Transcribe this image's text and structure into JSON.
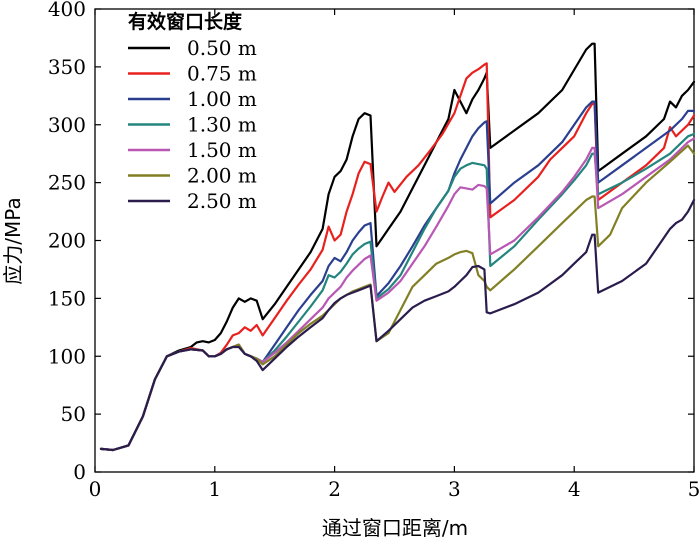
{
  "chart_data": {
    "type": "line",
    "xlabel": "通过窗口距离/m",
    "ylabel": "应力/MPa",
    "xlim": [
      0,
      5
    ],
    "ylim": [
      0,
      400
    ],
    "xticks": [
      0,
      1,
      2,
      3,
      4,
      5
    ],
    "yticks": [
      0,
      50,
      100,
      150,
      200,
      250,
      300,
      350,
      400
    ],
    "legend_title": "有效窗口长度",
    "legend_position": "top-left",
    "series": [
      {
        "name": "0.50 m",
        "color": "#000000",
        "x": [
          0.05,
          0.15,
          0.28,
          0.4,
          0.5,
          0.6,
          0.7,
          0.8,
          0.85,
          0.9,
          0.95,
          1.0,
          1.05,
          1.1,
          1.15,
          1.2,
          1.25,
          1.3,
          1.35,
          1.4,
          1.5,
          1.6,
          1.7,
          1.8,
          1.9,
          1.95,
          2.0,
          2.05,
          2.1,
          2.15,
          2.2,
          2.25,
          2.3,
          2.35,
          2.45,
          2.55,
          2.65,
          2.75,
          2.85,
          2.95,
          3.0,
          3.05,
          3.1,
          3.15,
          3.2,
          3.25,
          3.27,
          3.3,
          3.5,
          3.7,
          3.9,
          4.1,
          4.15,
          4.17,
          4.2,
          4.4,
          4.6,
          4.75,
          4.8,
          4.85,
          4.9,
          4.95,
          5.0
        ],
        "y": [
          20,
          19,
          23,
          48,
          80,
          100,
          105,
          108,
          112,
          113,
          112,
          114,
          120,
          130,
          142,
          150,
          147,
          150,
          148,
          132,
          145,
          160,
          175,
          190,
          210,
          240,
          255,
          260,
          270,
          290,
          305,
          310,
          308,
          195,
          210,
          225,
          245,
          265,
          285,
          305,
          330,
          320,
          310,
          322,
          330,
          340,
          345,
          280,
          295,
          310,
          330,
          365,
          370,
          370,
          260,
          275,
          290,
          305,
          320,
          315,
          325,
          330,
          337
        ]
      },
      {
        "name": "0.75 m",
        "color": "#e8201e",
        "x": [
          0.05,
          0.15,
          0.28,
          0.4,
          0.5,
          0.6,
          0.7,
          0.8,
          0.9,
          0.95,
          1.0,
          1.05,
          1.1,
          1.15,
          1.2,
          1.25,
          1.3,
          1.35,
          1.4,
          1.5,
          1.6,
          1.7,
          1.8,
          1.9,
          1.95,
          2.0,
          2.05,
          2.1,
          2.15,
          2.2,
          2.25,
          2.3,
          2.35,
          2.4,
          2.45,
          2.5,
          2.6,
          2.7,
          2.8,
          2.9,
          3.0,
          3.05,
          3.1,
          3.15,
          3.2,
          3.25,
          3.27,
          3.3,
          3.5,
          3.7,
          3.8,
          3.9,
          4.0,
          4.1,
          4.15,
          4.17,
          4.2,
          4.4,
          4.6,
          4.75,
          4.8,
          4.85,
          4.9,
          4.95,
          5.0
        ],
        "y": [
          20,
          19,
          23,
          48,
          80,
          100,
          104,
          107,
          105,
          100,
          100,
          103,
          110,
          118,
          120,
          125,
          122,
          127,
          118,
          133,
          148,
          162,
          175,
          192,
          212,
          200,
          205,
          225,
          240,
          258,
          268,
          266,
          225,
          238,
          250,
          242,
          255,
          265,
          278,
          292,
          310,
          325,
          340,
          345,
          348,
          352,
          353,
          220,
          235,
          255,
          270,
          280,
          290,
          310,
          318,
          318,
          235,
          250,
          265,
          280,
          298,
          290,
          295,
          300,
          308
        ]
      },
      {
        "name": "1.00 m",
        "color": "#2b3f8f",
        "x": [
          0.05,
          0.15,
          0.28,
          0.4,
          0.5,
          0.6,
          0.7,
          0.8,
          0.9,
          0.95,
          1.0,
          1.05,
          1.1,
          1.15,
          1.2,
          1.25,
          1.3,
          1.35,
          1.4,
          1.5,
          1.6,
          1.7,
          1.8,
          1.9,
          1.95,
          2.0,
          2.05,
          2.1,
          2.15,
          2.2,
          2.25,
          2.3,
          2.35,
          2.45,
          2.55,
          2.65,
          2.75,
          2.85,
          2.95,
          3.0,
          3.05,
          3.1,
          3.15,
          3.2,
          3.25,
          3.27,
          3.3,
          3.5,
          3.7,
          3.9,
          4.0,
          4.1,
          4.15,
          4.17,
          4.2,
          4.4,
          4.6,
          4.8,
          4.9,
          4.95,
          5.0
        ],
        "y": [
          20,
          19,
          23,
          48,
          80,
          100,
          104,
          106,
          105,
          100,
          100,
          102,
          106,
          108,
          110,
          102,
          100,
          98,
          95,
          110,
          125,
          140,
          153,
          165,
          178,
          185,
          182,
          190,
          200,
          207,
          213,
          215,
          152,
          163,
          178,
          195,
          213,
          228,
          243,
          258,
          270,
          280,
          290,
          297,
          302,
          303,
          232,
          250,
          265,
          285,
          300,
          315,
          320,
          320,
          250,
          265,
          280,
          295,
          305,
          312,
          312
        ]
      },
      {
        "name": "1.30 m",
        "color": "#23857d",
        "x": [
          0.05,
          0.15,
          0.28,
          0.4,
          0.5,
          0.6,
          0.7,
          0.8,
          0.9,
          0.95,
          1.0,
          1.05,
          1.1,
          1.15,
          1.2,
          1.25,
          1.3,
          1.35,
          1.4,
          1.5,
          1.6,
          1.7,
          1.8,
          1.9,
          1.95,
          2.0,
          2.05,
          2.1,
          2.15,
          2.2,
          2.25,
          2.3,
          2.35,
          2.45,
          2.55,
          2.65,
          2.75,
          2.85,
          2.95,
          3.0,
          3.05,
          3.1,
          3.15,
          3.2,
          3.25,
          3.27,
          3.3,
          3.5,
          3.7,
          3.9,
          4.0,
          4.1,
          4.15,
          4.17,
          4.2,
          4.4,
          4.6,
          4.8,
          4.9,
          4.95,
          5.0
        ],
        "y": [
          20,
          19,
          23,
          48,
          80,
          100,
          104,
          106,
          105,
          100,
          100,
          102,
          106,
          108,
          110,
          102,
          100,
          98,
          95,
          105,
          117,
          130,
          143,
          157,
          170,
          168,
          173,
          180,
          188,
          193,
          197,
          199,
          150,
          158,
          170,
          190,
          210,
          228,
          243,
          255,
          262,
          265,
          267,
          266,
          265,
          262,
          178,
          195,
          218,
          240,
          252,
          265,
          275,
          275,
          240,
          250,
          262,
          275,
          285,
          290,
          292
        ]
      },
      {
        "name": "1.50 m",
        "color": "#b957b4",
        "x": [
          0.05,
          0.15,
          0.28,
          0.4,
          0.5,
          0.6,
          0.7,
          0.8,
          0.9,
          0.95,
          1.0,
          1.05,
          1.1,
          1.15,
          1.2,
          1.25,
          1.3,
          1.35,
          1.4,
          1.5,
          1.6,
          1.7,
          1.8,
          1.9,
          1.95,
          2.0,
          2.05,
          2.1,
          2.15,
          2.2,
          2.25,
          2.3,
          2.35,
          2.45,
          2.55,
          2.65,
          2.75,
          2.85,
          2.95,
          3.0,
          3.05,
          3.1,
          3.15,
          3.2,
          3.25,
          3.27,
          3.3,
          3.5,
          3.7,
          3.9,
          4.0,
          4.1,
          4.15,
          4.17,
          4.2,
          4.4,
          4.6,
          4.8,
          4.9,
          4.95,
          5.0
        ],
        "y": [
          20,
          19,
          23,
          48,
          80,
          100,
          104,
          106,
          105,
          100,
          100,
          102,
          106,
          108,
          110,
          102,
          100,
          98,
          95,
          103,
          112,
          122,
          132,
          142,
          150,
          155,
          160,
          168,
          174,
          179,
          184,
          187,
          148,
          155,
          165,
          180,
          195,
          212,
          230,
          240,
          246,
          245,
          244,
          248,
          247,
          245,
          188,
          200,
          220,
          242,
          255,
          270,
          280,
          280,
          228,
          240,
          255,
          270,
          280,
          285,
          288
        ]
      },
      {
        "name": "2.00 m",
        "color": "#828024",
        "x": [
          0.05,
          0.15,
          0.28,
          0.4,
          0.5,
          0.6,
          0.7,
          0.8,
          0.9,
          0.95,
          1.0,
          1.05,
          1.1,
          1.15,
          1.2,
          1.25,
          1.3,
          1.35,
          1.4,
          1.5,
          1.6,
          1.7,
          1.8,
          1.9,
          1.95,
          2.0,
          2.05,
          2.1,
          2.15,
          2.2,
          2.25,
          2.3,
          2.35,
          2.45,
          2.55,
          2.65,
          2.75,
          2.85,
          2.95,
          3.0,
          3.05,
          3.1,
          3.15,
          3.2,
          3.25,
          3.27,
          3.3,
          3.5,
          3.7,
          3.9,
          4.0,
          4.1,
          4.15,
          4.17,
          4.2,
          4.3,
          4.4,
          4.6,
          4.8,
          4.95,
          5.0
        ],
        "y": [
          20,
          19,
          23,
          48,
          80,
          100,
          104,
          106,
          105,
          100,
          100,
          102,
          106,
          108,
          110,
          102,
          100,
          98,
          93,
          100,
          110,
          120,
          128,
          135,
          140,
          145,
          150,
          153,
          156,
          158,
          160,
          162,
          113,
          120,
          140,
          160,
          170,
          180,
          185,
          188,
          190,
          191,
          189,
          170,
          165,
          160,
          157,
          175,
          195,
          215,
          225,
          235,
          238,
          238,
          195,
          205,
          228,
          250,
          268,
          282,
          275
        ]
      },
      {
        "name": "2.50 m",
        "color": "#2b1c4e",
        "x": [
          0.05,
          0.15,
          0.28,
          0.4,
          0.5,
          0.6,
          0.7,
          0.8,
          0.9,
          0.95,
          1.0,
          1.05,
          1.1,
          1.15,
          1.2,
          1.25,
          1.3,
          1.35,
          1.4,
          1.5,
          1.6,
          1.7,
          1.8,
          1.9,
          1.95,
          2.0,
          2.05,
          2.1,
          2.15,
          2.2,
          2.25,
          2.3,
          2.35,
          2.45,
          2.55,
          2.65,
          2.75,
          2.85,
          2.95,
          3.0,
          3.05,
          3.1,
          3.15,
          3.2,
          3.25,
          3.27,
          3.3,
          3.5,
          3.7,
          3.9,
          4.0,
          4.1,
          4.15,
          4.17,
          4.2,
          4.4,
          4.6,
          4.7,
          4.8,
          4.85,
          4.9,
          4.95,
          5.0
        ],
        "y": [
          20,
          19,
          23,
          48,
          80,
          100,
          104,
          106,
          105,
          100,
          100,
          102,
          106,
          108,
          108,
          102,
          100,
          96,
          88,
          98,
          108,
          117,
          125,
          133,
          140,
          146,
          150,
          153,
          155,
          157,
          159,
          161,
          113,
          122,
          132,
          142,
          148,
          152,
          156,
          160,
          165,
          170,
          177,
          178,
          175,
          138,
          137,
          145,
          155,
          170,
          180,
          190,
          205,
          205,
          155,
          165,
          180,
          195,
          210,
          215,
          218,
          225,
          235
        ]
      }
    ]
  }
}
